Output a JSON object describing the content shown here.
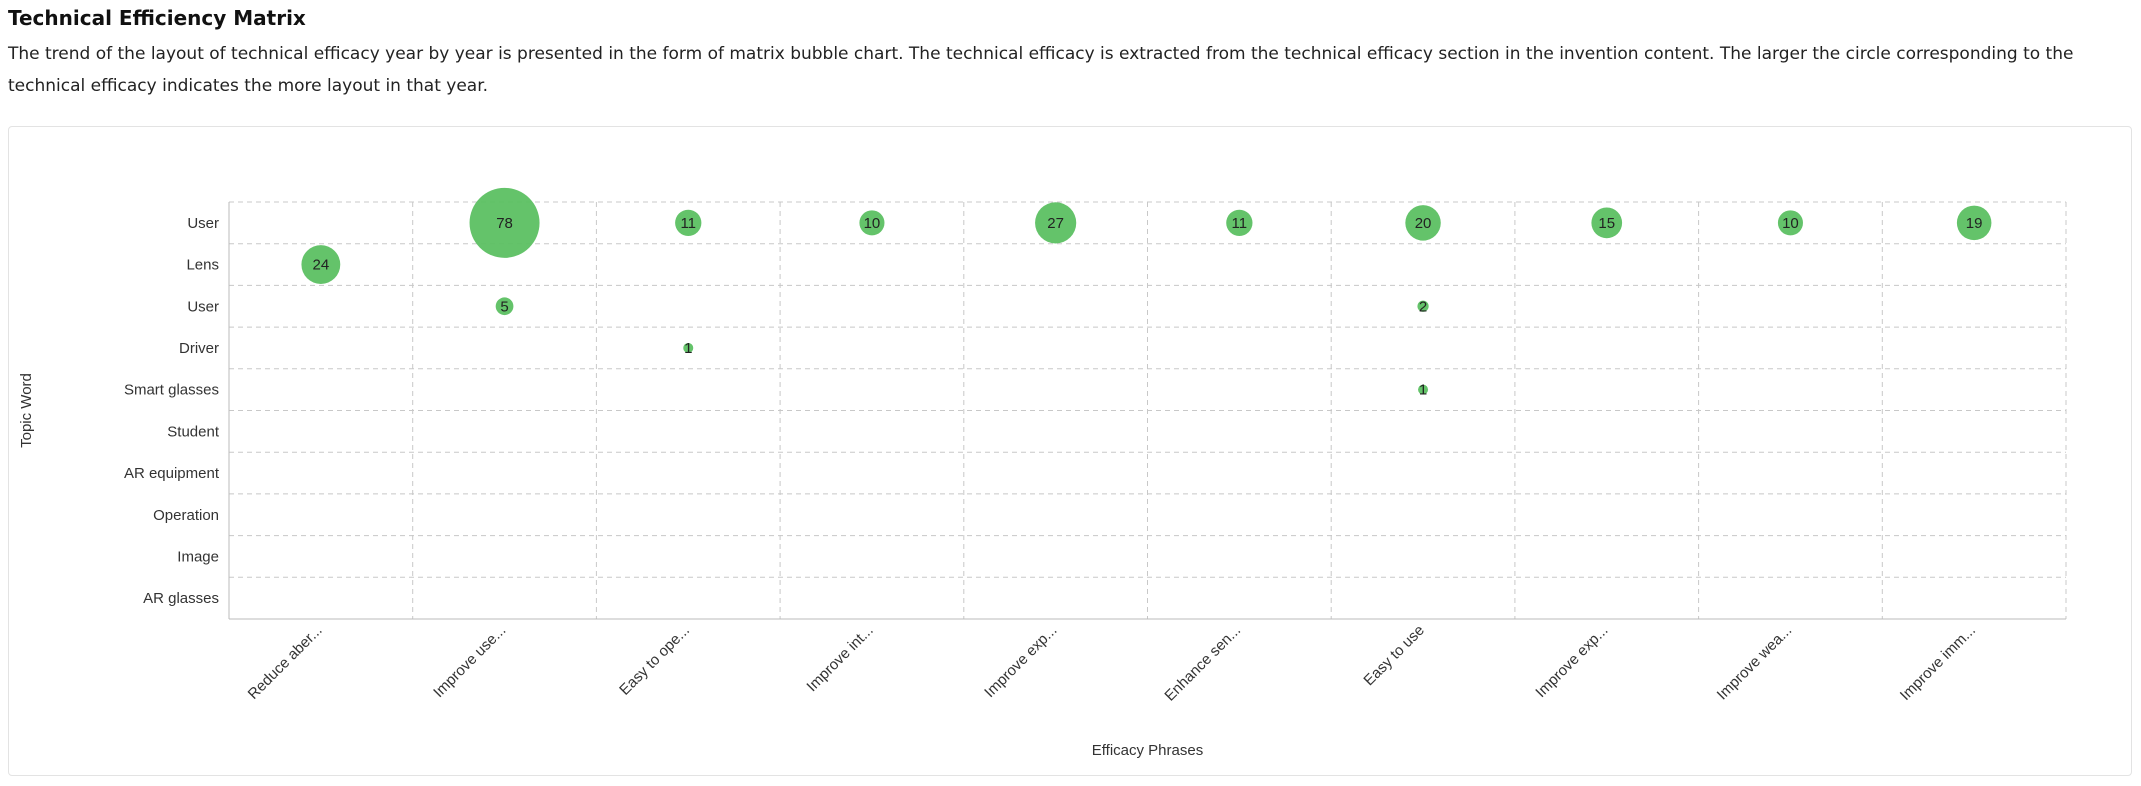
{
  "header": {
    "title": "Technical Efficiency Matrix",
    "description": "The trend of the layout of technical efficacy year by year is presented in the form of matrix bubble chart. The technical efficacy is extracted from the technical efficacy section in the invention content. The larger the circle corresponding to the technical efficacy indicates the more layout in that year."
  },
  "chart_data": {
    "type": "scatter",
    "subtype": "matrix-bubble",
    "xlabel": "Efficacy Phrases",
    "ylabel": "Topic Word",
    "x_categories": [
      "Reduce aber...",
      "Improve use...",
      "Easy to ope...",
      "Improve int...",
      "Improve exp...",
      "Enhance sen...",
      "Easy to use",
      "Improve exp...",
      "Improve wea...",
      "Improve imm..."
    ],
    "y_categories": [
      "User",
      "Lens",
      "User",
      "Driver",
      "Smart glasses",
      "Student",
      "AR equipment",
      "Operation",
      "Image",
      "AR glasses"
    ],
    "points": [
      {
        "x": 1,
        "y": 0,
        "value": 78
      },
      {
        "x": 2,
        "y": 0,
        "value": 11
      },
      {
        "x": 3,
        "y": 0,
        "value": 10
      },
      {
        "x": 4,
        "y": 0,
        "value": 27
      },
      {
        "x": 5,
        "y": 0,
        "value": 11
      },
      {
        "x": 6,
        "y": 0,
        "value": 20
      },
      {
        "x": 7,
        "y": 0,
        "value": 15
      },
      {
        "x": 8,
        "y": 0,
        "value": 10
      },
      {
        "x": 9,
        "y": 0,
        "value": 19
      },
      {
        "x": 0,
        "y": 1,
        "value": 24
      },
      {
        "x": 1,
        "y": 2,
        "value": 5
      },
      {
        "x": 6,
        "y": 2,
        "value": 2
      },
      {
        "x": 2,
        "y": 3,
        "value": 1
      },
      {
        "x": 6,
        "y": 4,
        "value": 1
      }
    ],
    "grid": true,
    "bubble_color": "#5cc062"
  }
}
